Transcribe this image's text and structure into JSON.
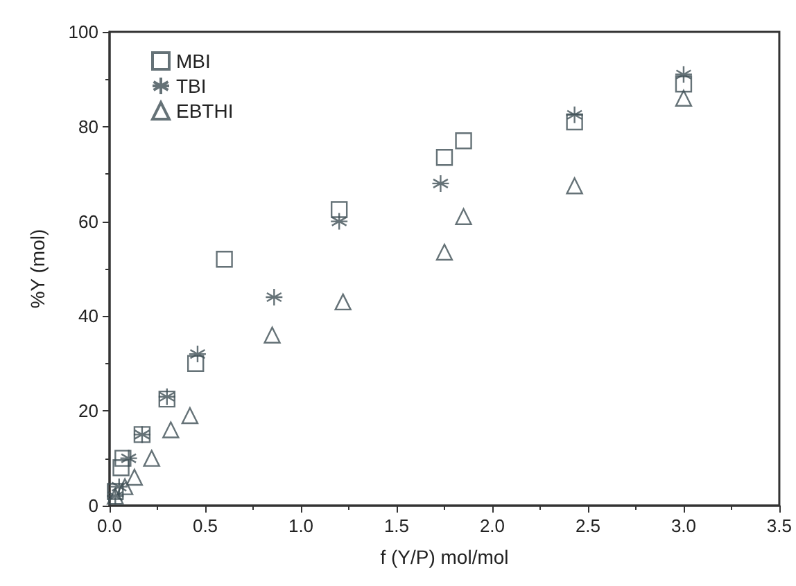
{
  "chart_data": {
    "type": "scatter",
    "xlabel": "f (Y/P) mol/mol",
    "ylabel": "%Y (mol)",
    "xlim": [
      0,
      3.5
    ],
    "ylim": [
      0,
      100
    ],
    "xticks": [
      {
        "value": 0,
        "label": "0.0"
      },
      {
        "value": 0.5,
        "label": "0.5"
      },
      {
        "value": 1,
        "label": "1.0"
      },
      {
        "value": 1.5,
        "label": "1.5"
      },
      {
        "value": 2,
        "label": "2.0"
      },
      {
        "value": 2.5,
        "label": "2.5"
      },
      {
        "value": 3,
        "label": "3.0"
      },
      {
        "value": 3.5,
        "label": "3.5"
      }
    ],
    "yticks": [
      0,
      20,
      40,
      60,
      80,
      100
    ],
    "grid": false,
    "legend": "top left",
    "series": [
      {
        "name": "MBI",
        "marker": "square",
        "color": "#3f4f55",
        "x": [
          0.03,
          0.06,
          0.07,
          0.17,
          0.3,
          0.45,
          0.6,
          1.2,
          1.75,
          1.85,
          2.43,
          3.0
        ],
        "values": [
          3,
          8,
          10,
          15,
          22.5,
          30,
          52,
          62.5,
          73.5,
          77,
          81,
          89
        ]
      },
      {
        "name": "TBI",
        "marker": "cross",
        "color": "#3f4f55",
        "x": [
          0.03,
          0.05,
          0.1,
          0.17,
          0.3,
          0.46,
          0.86,
          1.2,
          1.73,
          2.43,
          3.0
        ],
        "values": [
          2,
          4,
          10,
          15,
          23,
          32,
          44,
          60,
          68,
          82.5,
          91
        ]
      },
      {
        "name": "EBTHI",
        "marker": "triangle",
        "color": "#3f4f55",
        "x": [
          0.03,
          0.08,
          0.13,
          0.22,
          0.32,
          0.42,
          0.85,
          1.22,
          1.75,
          1.85,
          2.43,
          3.0
        ],
        "values": [
          2,
          4,
          6,
          10,
          16,
          19,
          36,
          43,
          53.5,
          61,
          67.5,
          86
        ]
      }
    ]
  }
}
